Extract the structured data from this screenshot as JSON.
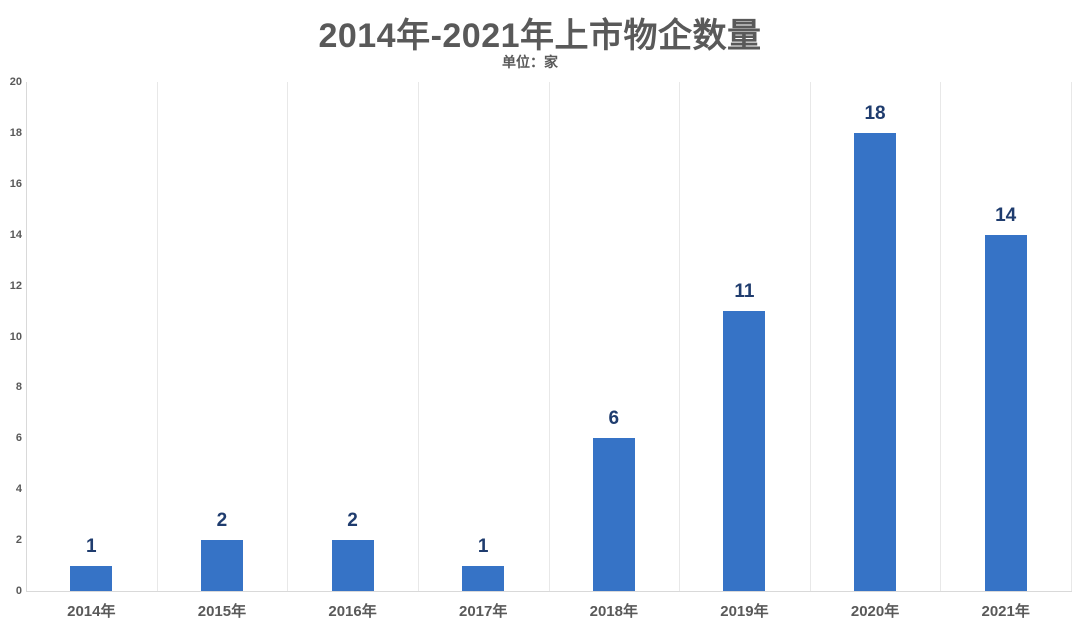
{
  "header": {
    "title": "2014年-2021年上市物企数量",
    "subtitle": "单位：家"
  },
  "colors": {
    "bar": "#3673C6",
    "data_label": "#1F3C6E",
    "axis_text": "#595959",
    "title_text": "#595959",
    "gridline": "#E8E8E8",
    "axis_line": "#D9D9D9",
    "background": "#FFFFFF"
  },
  "chart_data": {
    "type": "bar",
    "title": "2014年-2021年上市物企数量",
    "subtitle": "单位：家",
    "categories": [
      "2014年",
      "2015年",
      "2016年",
      "2017年",
      "2018年",
      "2019年",
      "2020年",
      "2021年"
    ],
    "values": [
      1,
      2,
      2,
      1,
      6,
      11,
      18,
      14
    ],
    "data_labels": [
      "1",
      "2",
      "2",
      "1",
      "6",
      "11",
      "18",
      "14"
    ],
    "y_tick_labels": [
      "0",
      "2",
      "4",
      "6",
      "8",
      "10",
      "12",
      "14",
      "16",
      "18",
      "20"
    ],
    "xlabel": "",
    "ylabel": "",
    "ylim": [
      0,
      20
    ],
    "ytick_step": 2,
    "grid": "vertical-only",
    "legend": "none"
  }
}
